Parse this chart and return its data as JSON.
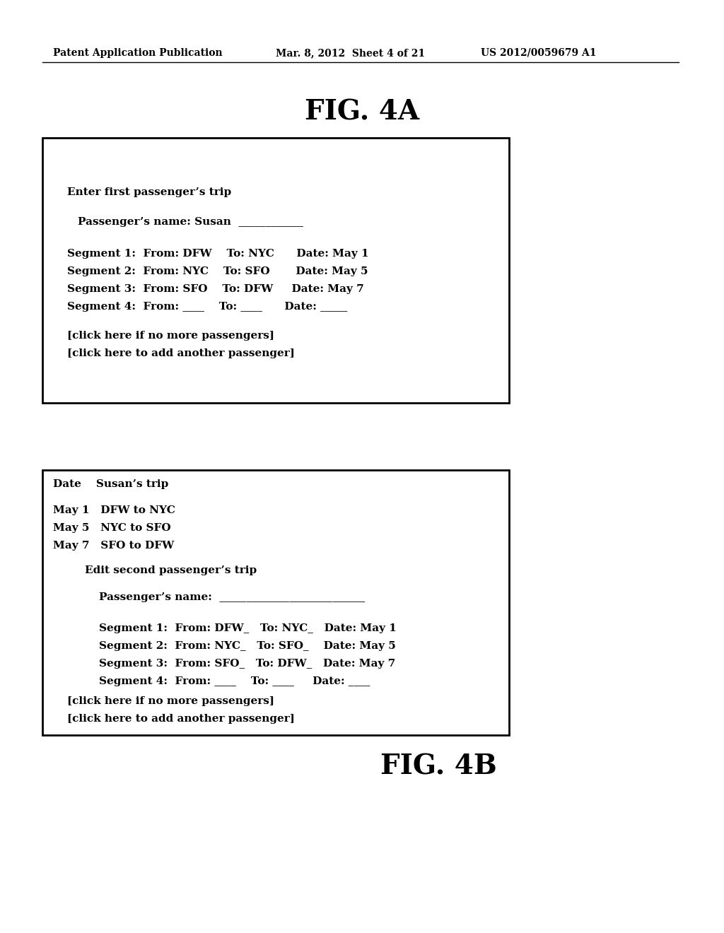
{
  "background_color": "#ffffff",
  "header_text": "Patent Application Publication",
  "header_date": "Mar. 8, 2012  Sheet 4 of 21",
  "header_patent": "US 2012/0059679 A1",
  "fig4a_title": "FIG. 4A",
  "fig4b_title": "FIG. 4B",
  "page_width": 10.24,
  "page_height": 13.2,
  "dpi": 100
}
